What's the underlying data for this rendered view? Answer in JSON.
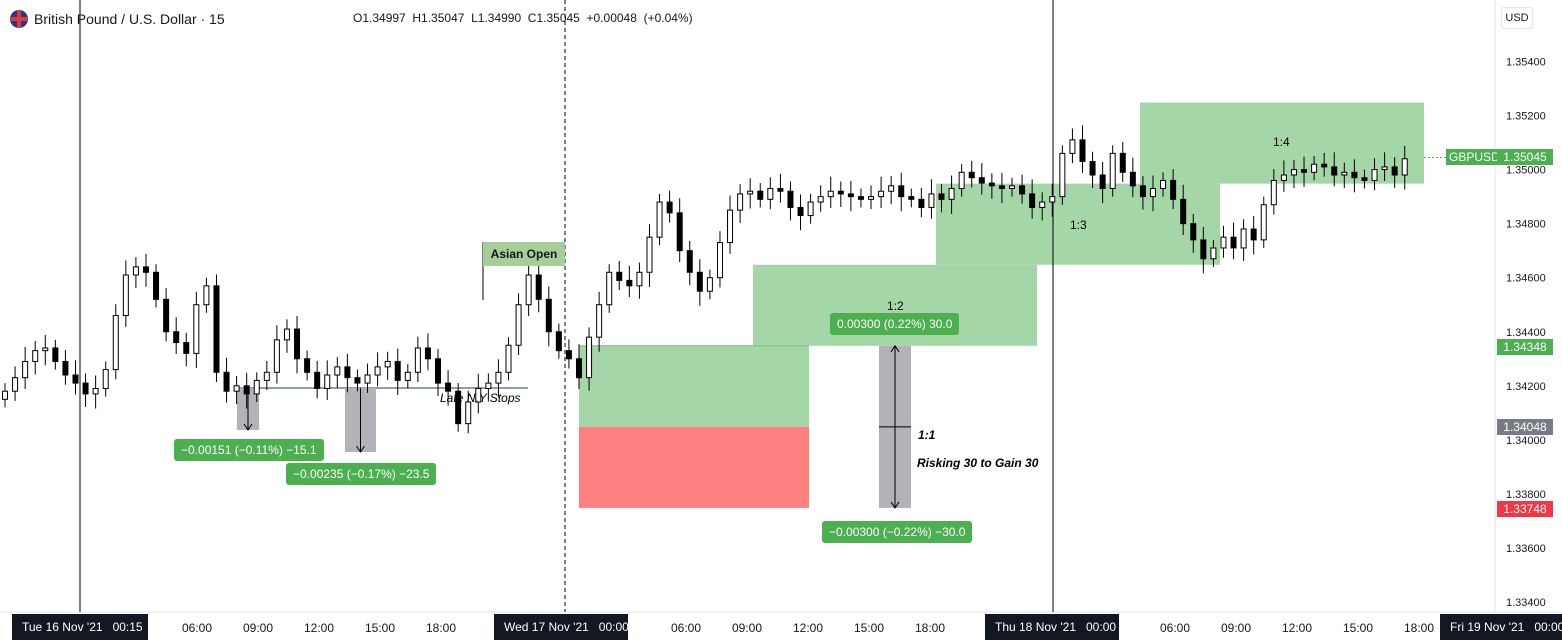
{
  "header": {
    "symbol_title": "British Pound / U.S. Dollar · 15",
    "ohlc": "O1.34997  H1.35047  L1.34990  C1.35045  +0.00048  (+0.04%)",
    "currency": "USD"
  },
  "symbol_tag": "GBPUSD",
  "price_tags": [
    {
      "label": "1.35045",
      "color": "#4caf50",
      "price": 1.35045
    },
    {
      "label": "1.34348",
      "color": "#4caf50",
      "price": 1.34348
    },
    {
      "label": "1.34048",
      "color": "#787b86",
      "price": 1.34048
    },
    {
      "label": "1.33748",
      "color": "#f23645",
      "price": 1.33748
    }
  ],
  "measure_labels": [
    "−0.00151 (−0.11%) −15.1",
    "−0.00235 (−0.17%) −23.5",
    "0.00300 (0.22%) 30.0",
    "−0.00300 (−0.22%) −30.0"
  ],
  "annotations": {
    "asian_open": "Asian Open",
    "late_ny_stops": "Late N.Y Stops",
    "ratio_1_1": "1:1",
    "risk_note": "Risking 30 to Gain 30",
    "ratio_1_2": "1:2",
    "ratio_1_3": "1:3",
    "ratio_1_4": "1:4"
  },
  "date_boxes": [
    "Tue 16 Nov '21   00:15",
    "Wed 17 Nov '21   00:00",
    "Thu 18 Nov '21   00:00",
    "Fri 19 Nov '21   00:00"
  ],
  "colors": {
    "up_candle": "#ffffff",
    "down_candle": "#000000",
    "target_zone": "#a5d6a7",
    "stop_zone": "#ff8080",
    "measure": "#b2b2b8"
  },
  "chart_data": {
    "type": "candlestick",
    "symbol": "GBPUSD",
    "timeframe": "15",
    "ylim": [
      1.3335,
      1.3555
    ],
    "y_ticks": [
      "1.35400",
      "1.35200",
      "1.35000",
      "1.34800",
      "1.34600",
      "1.34400",
      "1.34200",
      "1.34000",
      "1.33800",
      "1.33600",
      "1.33400"
    ],
    "x_ticks": [
      "06:00",
      "09:00",
      "12:00",
      "15:00",
      "18:00",
      "06:00",
      "09:00",
      "12:00",
      "15:00",
      "18:00",
      "06:00",
      "09:00",
      "12:00",
      "15:00",
      "18:00"
    ],
    "series": [
      {
        "close": [
          1.3418,
          1.3423,
          1.3429,
          1.3433,
          1.3434,
          1.3429,
          1.3424,
          1.3421,
          1.3417,
          1.3419,
          1.3426,
          1.3446,
          1.3461,
          1.3464,
          1.3462,
          1.3452,
          1.344,
          1.3436,
          1.3432,
          1.345,
          1.3457,
          1.3425,
          1.3418,
          1.342,
          1.3417,
          1.3422,
          1.3425,
          1.3437,
          1.3441,
          1.343,
          1.3425,
          1.3419,
          1.3424,
          1.3427,
          1.3423,
          1.3421,
          1.3424,
          1.3427,
          1.3429,
          1.3422,
          1.3425,
          1.3434,
          1.343,
          1.3421,
          1.3418,
          1.3406,
          1.3414,
          1.3419,
          1.3421,
          1.3425,
          1.3435,
          1.345,
          1.3461,
          1.3452,
          1.344,
          1.3433,
          1.343,
          1.3423,
          1.3438,
          1.345,
          1.3462,
          1.3459,
          1.3457,
          1.3462,
          1.3475,
          1.3488,
          1.3484,
          1.347,
          1.3462,
          1.3455,
          1.346,
          1.3473,
          1.3485,
          1.3491,
          1.3492,
          1.3489,
          1.3493,
          1.3492,
          1.3486,
          1.3483,
          1.3488,
          1.349,
          1.3492,
          1.3491,
          1.349,
          1.3489,
          1.349,
          1.3492,
          1.3494,
          1.349,
          1.3489,
          1.3486,
          1.3491,
          1.3489,
          1.3493,
          1.3499,
          1.3497,
          1.3495,
          1.3494,
          1.3493,
          1.3494,
          1.3491,
          1.3486,
          1.3488,
          1.349,
          1.3506,
          1.3511,
          1.3503,
          1.3498,
          1.3493,
          1.3506,
          1.3499,
          1.3494,
          1.349,
          1.3493,
          1.3496,
          1.3489,
          1.348,
          1.3474,
          1.3467,
          1.3471,
          1.3475,
          1.3471,
          1.3478,
          1.3474,
          1.3487,
          1.3496,
          1.3498,
          1.35,
          1.3499,
          1.3502,
          1.3501,
          1.3498,
          1.3499,
          1.3497,
          1.3496,
          1.35,
          1.3501,
          1.3498,
          1.3504
        ]
      }
    ],
    "zones": [
      {
        "label": "1:1",
        "type": "target",
        "from": 1.34048,
        "to": 1.34348
      },
      {
        "label": "stop",
        "type": "stop",
        "from": 1.33748,
        "to": 1.34048
      },
      {
        "label": "1:2",
        "type": "target",
        "from": 1.34348,
        "to": 1.34648
      },
      {
        "label": "1:3",
        "type": "target",
        "from": 1.34648,
        "to": 1.34948
      },
      {
        "label": "1:4",
        "type": "target",
        "from": 1.34948,
        "to": 1.35248
      }
    ],
    "last_price": 1.35045
  }
}
